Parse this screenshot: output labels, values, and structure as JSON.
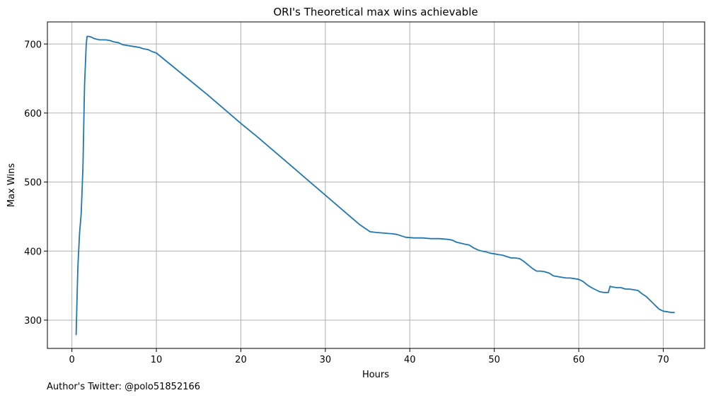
{
  "chart_data": {
    "type": "line",
    "title": "ORI's Theoretical max wins achievable",
    "xlabel": "Hours",
    "ylabel": "Max Wins",
    "xlim": [
      -2.9,
      74.9
    ],
    "ylim": [
      259,
      732
    ],
    "xticks": [
      0,
      10,
      20,
      30,
      40,
      50,
      60,
      70
    ],
    "yticks": [
      300,
      400,
      500,
      600,
      700
    ],
    "grid": true,
    "legend": "none",
    "colors": {
      "line": "#1f77b4",
      "grid": "#b0b0b0",
      "axis": "#000000"
    },
    "series": [
      {
        "x": [
          0.5,
          0.7,
          0.9,
          1.1,
          1.3,
          1.5,
          1.7,
          1.8,
          2.0,
          2.3,
          2.6,
          2.9,
          3.3,
          3.6,
          4.0,
          4.5,
          5.0,
          5.5,
          6.0,
          6.5,
          7.0,
          7.5,
          8.0,
          8.5,
          9.0,
          9.5,
          10.0,
          12.0,
          14.0,
          16.0,
          18.0,
          20.0,
          22.0,
          24.0,
          26.0,
          28.0,
          30.0,
          32.0,
          34.0,
          35.3,
          36.0,
          37.0,
          38.0,
          38.5,
          39.0,
          39.5,
          40.5,
          41.5,
          42.5,
          43.5,
          44.5,
          45.0,
          45.5,
          46.5,
          47.0,
          47.5,
          48.0,
          48.5,
          49.0,
          49.5,
          50.0,
          50.5,
          51.0,
          51.5,
          52.0,
          52.5,
          53.0,
          53.5,
          54.0,
          54.5,
          55.0,
          55.5,
          56.0,
          56.5,
          57.0,
          57.5,
          58.0,
          58.5,
          59.0,
          59.5,
          60.0,
          60.5,
          61.0,
          61.5,
          62.0,
          62.5,
          63.0,
          63.5,
          63.7,
          64.0,
          64.5,
          65.0,
          65.5,
          66.0,
          66.5,
          67.0,
          67.5,
          68.0,
          68.5,
          69.0,
          69.5,
          70.0,
          70.5,
          71.0,
          71.3
        ],
        "y": [
          279,
          375,
          425,
          455,
          520,
          640,
          700,
          711,
          711,
          710,
          708,
          707,
          706,
          706,
          706,
          705,
          703,
          702,
          699,
          698,
          697,
          696,
          695,
          693,
          692,
          689,
          687,
          667,
          647,
          627,
          606,
          585,
          565,
          544,
          523,
          502,
          481,
          460,
          439,
          428,
          427,
          426,
          425,
          424,
          422,
          420,
          419,
          419,
          418,
          418,
          417,
          416,
          413,
          410,
          409,
          405,
          402,
          400,
          399,
          397,
          396,
          395,
          394,
          392,
          390,
          390,
          389,
          385,
          380,
          375,
          371,
          371,
          370,
          368,
          364,
          363,
          362,
          361,
          361,
          360,
          359,
          356,
          351,
          347,
          344,
          341,
          340,
          340,
          349,
          348,
          347,
          347,
          345,
          345,
          344,
          343,
          338,
          334,
          328,
          322,
          316,
          313,
          312,
          311,
          311
        ]
      }
    ],
    "footnote": "Author's Twitter: @polo51852166"
  }
}
